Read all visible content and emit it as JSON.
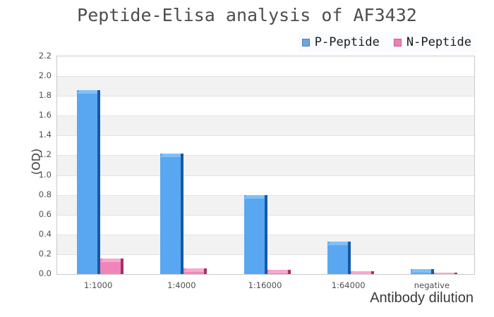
{
  "title": "Peptide-Elisa analysis of AF3432",
  "legend": {
    "items": [
      {
        "label": "P-Peptide",
        "swatch_fill": "#6FA5DE",
        "swatch_border": "#4C80B8"
      },
      {
        "label": "N-Peptide",
        "swatch_fill": "#EC82B4",
        "swatch_border": "#C75A92"
      }
    ],
    "background": "#fafcff"
  },
  "chart_data": {
    "type": "bar",
    "title": "Peptide-Elisa analysis of AF3432",
    "categories": [
      "1:1000",
      "1:4000",
      "1:16000",
      "1:64000",
      "negative"
    ],
    "series": [
      {
        "name": "P-Peptide",
        "values": [
          1.86,
          1.22,
          0.8,
          0.33,
          0.05
        ],
        "fill": "#5AA7F1",
        "bevel": "#82BFF8",
        "edge": "#1659A8"
      },
      {
        "name": "N-Peptide",
        "values": [
          0.16,
          0.06,
          0.045,
          0.025,
          0.015
        ],
        "fill": "#F184B9",
        "bevel": "#F8A9D0",
        "edge": "#A43169"
      }
    ],
    "xlabel": "Antibody dilution",
    "ylabel": "(OD)",
    "ylim": [
      0,
      2.2
    ],
    "ytick_step": 0.2,
    "yticks": [
      "0.0",
      "0.2",
      "0.4",
      "0.6",
      "0.8",
      "1.0",
      "1.2",
      "1.4",
      "1.6",
      "1.8",
      "2.0",
      "2.2"
    ],
    "grid": true,
    "band_colors": [
      "#ffffff",
      "#f2f2f2"
    ],
    "gridline_color": "#e2e2e2",
    "plot_border_color": "#c9c9c9",
    "legend_position": "top-right"
  }
}
